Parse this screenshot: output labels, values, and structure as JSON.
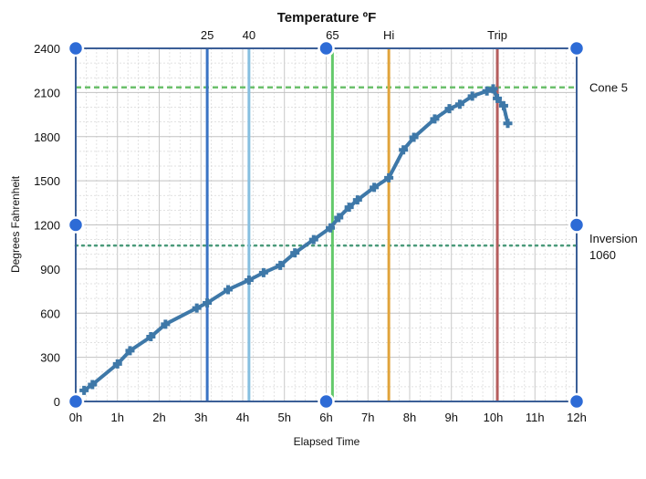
{
  "chart_data": {
    "type": "line",
    "title": "Temperature ºF",
    "xlabel": "Elapsed Time",
    "ylabel": "Degrees Fahrenheit",
    "xlim": [
      0,
      12
    ],
    "ylim": [
      0,
      2400
    ],
    "x_ticks": [
      0,
      1,
      2,
      3,
      4,
      5,
      6,
      7,
      8,
      9,
      10,
      11,
      12
    ],
    "x_tick_labels": [
      "0h",
      "1h",
      "2h",
      "3h",
      "4h",
      "5h",
      "6h",
      "7h",
      "8h",
      "9h",
      "10h",
      "11h",
      "12h"
    ],
    "y_ticks": [
      0,
      300,
      600,
      900,
      1200,
      1500,
      1800,
      2100,
      2400
    ],
    "y_tick_labels": [
      "0",
      "300",
      "600",
      "900",
      "1200",
      "1500",
      "1800",
      "2100",
      "2400"
    ],
    "grid": true,
    "series": [
      {
        "name": "Temperature",
        "color": "#3e78a8",
        "points": [
          [
            0.2,
            75
          ],
          [
            0.4,
            115
          ],
          [
            1.0,
            255
          ],
          [
            1.3,
            345
          ],
          [
            1.8,
            440
          ],
          [
            2.15,
            525
          ],
          [
            2.9,
            635
          ],
          [
            3.15,
            670
          ],
          [
            3.65,
            760
          ],
          [
            4.15,
            825
          ],
          [
            4.5,
            875
          ],
          [
            4.9,
            925
          ],
          [
            5.25,
            1010
          ],
          [
            5.7,
            1100
          ],
          [
            6.1,
            1180
          ],
          [
            6.3,
            1250
          ],
          [
            6.55,
            1320
          ],
          [
            6.75,
            1370
          ],
          [
            7.15,
            1455
          ],
          [
            7.5,
            1520
          ],
          [
            7.85,
            1710
          ],
          [
            8.1,
            1795
          ],
          [
            8.6,
            1920
          ],
          [
            8.95,
            1990
          ],
          [
            9.2,
            2020
          ],
          [
            9.5,
            2075
          ],
          [
            9.85,
            2110
          ],
          [
            10.0,
            2125
          ],
          [
            10.1,
            2060
          ],
          [
            10.25,
            2010
          ],
          [
            10.35,
            1890
          ]
        ]
      }
    ],
    "vertical_markers": [
      {
        "label": "25",
        "x": 3.15,
        "color": "#3a73c4"
      },
      {
        "label": "40",
        "x": 4.15,
        "color": "#86bfe0"
      },
      {
        "label": "65",
        "x": 6.15,
        "color": "#63c96a"
      },
      {
        "label": "Hi",
        "x": 7.5,
        "color": "#e1a43c"
      },
      {
        "label": "Trip",
        "x": 10.1,
        "color": "#b55d5d",
        "label_color": "#b55d5d"
      }
    ],
    "horizontal_markers": [
      {
        "label": "Cone 5",
        "y": 2135,
        "color": "#6cc06c",
        "style": "dashed"
      },
      {
        "label": "Inversion",
        "label2": "1060",
        "y": 1060,
        "color": "#4a9a7a",
        "style": "dotted"
      }
    ],
    "handles_color": "#2d6bd6"
  }
}
